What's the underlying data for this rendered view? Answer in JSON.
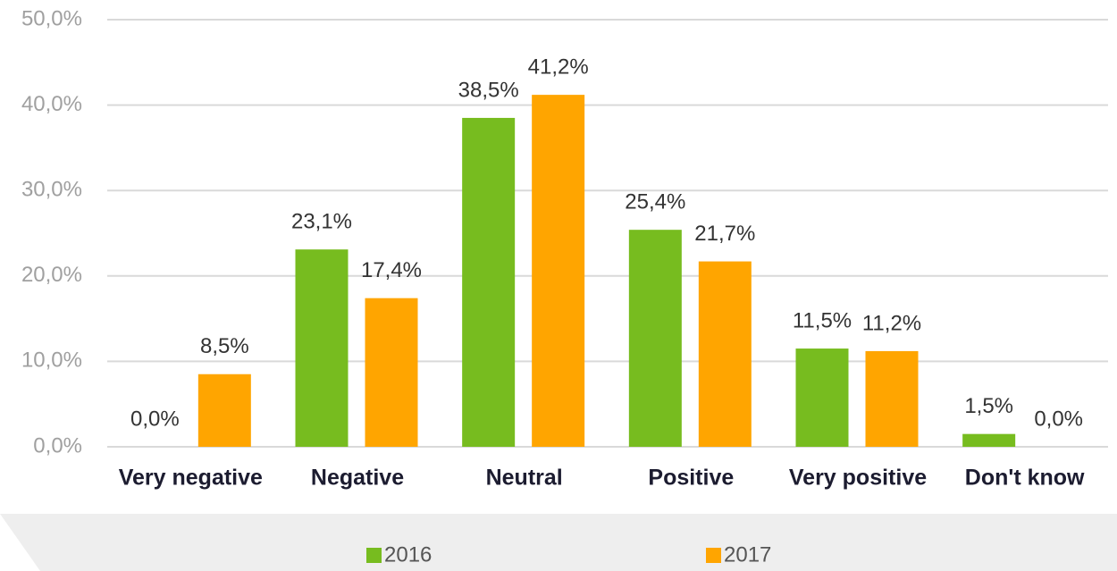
{
  "chart_data": {
    "type": "bar",
    "categories": [
      "Very negative",
      "Negative",
      "Neutral",
      "Positive",
      "Very positive",
      "Don't know"
    ],
    "series": [
      {
        "name": "2016",
        "color": "#77bc1f",
        "values": [
          0,
          23.1,
          38.5,
          25.4,
          11.5,
          1.5
        ],
        "value_labels": [
          "0,0%",
          "23,1%",
          "38,5%",
          "25,4%",
          "11,5%",
          "1,5%"
        ]
      },
      {
        "name": "2017",
        "color": "#ffa500",
        "values": [
          8.5,
          17.4,
          41.2,
          21.7,
          11.2,
          0
        ],
        "value_labels": [
          "8,5%",
          "17,4%",
          "41,2%",
          "21,7%",
          "11,2%",
          "0,0%"
        ]
      }
    ],
    "ylim": [
      0,
      50
    ],
    "yticks": [
      {
        "value": 0,
        "label": "0,0%"
      },
      {
        "value": 10,
        "label": "10,0%"
      },
      {
        "value": 20,
        "label": "20,0%"
      },
      {
        "value": 30,
        "label": "30,0%"
      },
      {
        "value": 40,
        "label": "40,0%"
      },
      {
        "value": 50,
        "label": "50,0%"
      }
    ],
    "grid": true,
    "legend": "bottom"
  }
}
